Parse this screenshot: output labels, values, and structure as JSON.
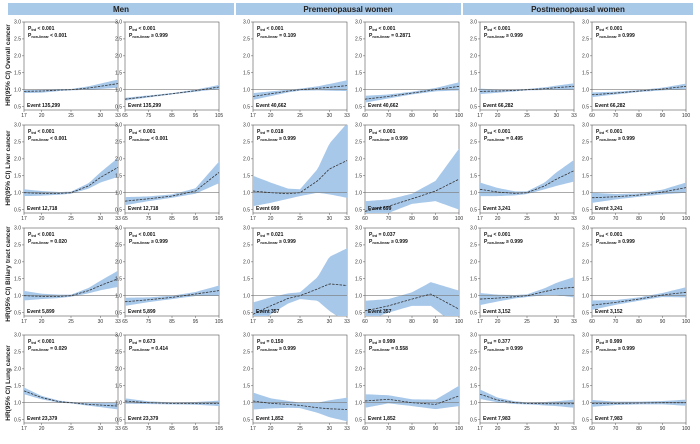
{
  "colors": {
    "header_bg": "#a9c9e8",
    "band": "#a8c8ea",
    "curve": "#333333",
    "reference_line": "#777777"
  },
  "columns": [
    "Men",
    "Premenopausal women",
    "Postmenopausal women"
  ],
  "row_labels": [
    "HR(95% CI) Overall cancer",
    "HR(95% CI) Liver cancer",
    "HR(95% CI) Biliary tract cancer",
    "HR(95% CI) Lung cancer"
  ],
  "chart_data": {
    "type": "line",
    "layout": "grid of 4 rows x 6 panels; spline hazard ratio curves with 95% CI bands and reference line at HR = 1.0",
    "x_axes": {
      "bmi": {
        "ticks": [
          "17",
          "20",
          "25",
          "30",
          "33"
        ],
        "range": [
          17,
          33
        ]
      },
      "waist": {
        "ticks": [
          "65",
          "75",
          "85",
          "95",
          "105"
        ],
        "range": [
          65,
          105
        ]
      },
      "waist_pre": {
        "ticks": [
          "60",
          "70",
          "80",
          "90",
          "100"
        ],
        "range": [
          60,
          100
        ]
      }
    },
    "y_ticks": [
      "0.5",
      "1.0",
      "1.5",
      "2.0",
      "2.5",
      "3.0"
    ],
    "ylim": [
      0.4,
      3.0
    ],
    "p_trend_label": "P",
    "p_trend_sub": "trd",
    "p_nonlinear_label": "P",
    "p_nonlinear_sub": "non-linear",
    "panels": [
      {
        "row": 0,
        "col": 0,
        "x": "bmi",
        "p_trend": "< 0.001",
        "p_nonlinear": "< 0.001",
        "event": "Event 135,299",
        "curve": [
          [
            17,
            0.95
          ],
          [
            20,
            0.96
          ],
          [
            23,
            0.99
          ],
          [
            25,
            1.0
          ],
          [
            28,
            1.05
          ],
          [
            30,
            1.1
          ],
          [
            33,
            1.18
          ]
        ],
        "band": [
          0.05,
          0.05,
          0.03,
          0.02,
          0.05,
          0.08,
          0.12
        ]
      },
      {
        "row": 0,
        "col": 1,
        "x": "waist",
        "p_trend": "< 0.001",
        "p_nonlinear": "≥ 0.999",
        "event": "Event 135,299",
        "curve": [
          [
            65,
            0.72
          ],
          [
            75,
            0.8
          ],
          [
            85,
            0.88
          ],
          [
            95,
            0.97
          ],
          [
            105,
            1.08
          ]
        ],
        "band": [
          0.04,
          0.03,
          0.02,
          0.03,
          0.06
        ]
      },
      {
        "row": 0,
        "col": 2,
        "x": "bmi",
        "p_trend": "< 0.001",
        "p_nonlinear": "= 0.109",
        "event": "Event 40,662",
        "curve": [
          [
            17,
            0.8
          ],
          [
            20,
            0.88
          ],
          [
            23,
            0.96
          ],
          [
            25,
            1.0
          ],
          [
            28,
            1.04
          ],
          [
            30,
            1.07
          ],
          [
            33,
            1.12
          ]
        ],
        "band": [
          0.1,
          0.07,
          0.04,
          0.03,
          0.06,
          0.1,
          0.16
        ]
      },
      {
        "row": 0,
        "col": 3,
        "x": "waist_pre",
        "p_trend": "< 0.001",
        "p_nonlinear": "= 0.2871",
        "event": "Event 40,662",
        "curve": [
          [
            60,
            0.72
          ],
          [
            70,
            0.8
          ],
          [
            80,
            0.9
          ],
          [
            90,
            1.0
          ],
          [
            100,
            1.1
          ]
        ],
        "band": [
          0.1,
          0.06,
          0.04,
          0.05,
          0.12
        ]
      },
      {
        "row": 0,
        "col": 4,
        "x": "bmi",
        "p_trend": "< 0.001",
        "p_nonlinear": "≥ 0.999",
        "event": "Event 66,282",
        "curve": [
          [
            17,
            0.95
          ],
          [
            20,
            0.96
          ],
          [
            23,
            0.98
          ],
          [
            25,
            1.0
          ],
          [
            28,
            1.03
          ],
          [
            30,
            1.06
          ],
          [
            33,
            1.1
          ]
        ],
        "band": [
          0.08,
          0.05,
          0.03,
          0.02,
          0.04,
          0.06,
          0.09
        ]
      },
      {
        "row": 0,
        "col": 5,
        "x": "waist_pre",
        "p_trend": "< 0.001",
        "p_nonlinear": "≥ 0.999",
        "event": "Event 66,282",
        "curve": [
          [
            60,
            0.85
          ],
          [
            70,
            0.9
          ],
          [
            80,
            0.96
          ],
          [
            90,
            1.02
          ],
          [
            100,
            1.1
          ]
        ],
        "band": [
          0.07,
          0.04,
          0.03,
          0.04,
          0.08
        ]
      },
      {
        "row": 1,
        "col": 0,
        "x": "bmi",
        "p_trend": "< 0.001",
        "p_nonlinear": "< 0.001",
        "event": "Event 12,718",
        "curve": [
          [
            17,
            1.0
          ],
          [
            20,
            0.98
          ],
          [
            23,
            0.98
          ],
          [
            25,
            1.0
          ],
          [
            28,
            1.2
          ],
          [
            30,
            1.45
          ],
          [
            33,
            1.75
          ]
        ],
        "band": [
          0.1,
          0.07,
          0.04,
          0.03,
          0.08,
          0.15,
          0.28
        ]
      },
      {
        "row": 1,
        "col": 1,
        "x": "waist",
        "p_trend": "< 0.001",
        "p_nonlinear": "< 0.001",
        "event": "Event 12,718",
        "curve": [
          [
            65,
            0.75
          ],
          [
            75,
            0.82
          ],
          [
            85,
            0.9
          ],
          [
            95,
            1.05
          ],
          [
            105,
            1.6
          ]
        ],
        "band": [
          0.12,
          0.07,
          0.05,
          0.08,
          0.32
        ]
      },
      {
        "row": 1,
        "col": 2,
        "x": "bmi",
        "p_trend": "= 0.018",
        "p_nonlinear": "≥ 0.999",
        "event": "Event 699",
        "curve": [
          [
            17,
            1.05
          ],
          [
            20,
            1.0
          ],
          [
            23,
            0.97
          ],
          [
            25,
            1.0
          ],
          [
            28,
            1.35
          ],
          [
            30,
            1.7
          ],
          [
            33,
            1.95
          ]
        ],
        "band": [
          0.45,
          0.3,
          0.15,
          0.1,
          0.35,
          0.75,
          1.1
        ]
      },
      {
        "row": 1,
        "col": 3,
        "x": "waist_pre",
        "p_trend": "< 0.001",
        "p_nonlinear": "≥ 0.999",
        "event": "Event 699",
        "curve": [
          [
            60,
            0.45
          ],
          [
            70,
            0.6
          ],
          [
            80,
            0.82
          ],
          [
            90,
            1.05
          ],
          [
            100,
            1.4
          ]
        ],
        "band": [
          0.3,
          0.2,
          0.15,
          0.3,
          0.9
        ]
      },
      {
        "row": 1,
        "col": 4,
        "x": "bmi",
        "p_trend": "< 0.001",
        "p_nonlinear": "= 0.495",
        "event": "Event 3,241",
        "curve": [
          [
            17,
            1.1
          ],
          [
            20,
            1.02
          ],
          [
            23,
            0.98
          ],
          [
            25,
            1.0
          ],
          [
            28,
            1.2
          ],
          [
            30,
            1.4
          ],
          [
            33,
            1.65
          ]
        ],
        "band": [
          0.2,
          0.12,
          0.06,
          0.04,
          0.1,
          0.2,
          0.32
        ]
      },
      {
        "row": 1,
        "col": 5,
        "x": "waist_pre",
        "p_trend": "< 0.001",
        "p_nonlinear": "≥ 0.999",
        "event": "Event 3,241",
        "curve": [
          [
            60,
            0.85
          ],
          [
            70,
            0.88
          ],
          [
            80,
            0.93
          ],
          [
            90,
            1.02
          ],
          [
            100,
            1.15
          ]
        ],
        "band": [
          0.15,
          0.08,
          0.05,
          0.07,
          0.15
        ]
      },
      {
        "row": 2,
        "col": 0,
        "x": "bmi",
        "p_trend": "< 0.001",
        "p_nonlinear": "= 0.020",
        "event": "Event 5,899",
        "curve": [
          [
            17,
            1.0
          ],
          [
            20,
            0.98
          ],
          [
            23,
            0.98
          ],
          [
            25,
            1.0
          ],
          [
            28,
            1.15
          ],
          [
            30,
            1.3
          ],
          [
            33,
            1.5
          ]
        ],
        "band": [
          0.14,
          0.08,
          0.05,
          0.03,
          0.08,
          0.14,
          0.24
        ]
      },
      {
        "row": 2,
        "col": 1,
        "x": "waist",
        "p_trend": "< 0.001",
        "p_nonlinear": "≥ 0.999",
        "event": "Event 5,899",
        "curve": [
          [
            65,
            0.82
          ],
          [
            75,
            0.88
          ],
          [
            85,
            0.95
          ],
          [
            95,
            1.05
          ],
          [
            105,
            1.15
          ]
        ],
        "band": [
          0.12,
          0.07,
          0.05,
          0.06,
          0.15
        ]
      },
      {
        "row": 2,
        "col": 2,
        "x": "bmi",
        "p_trend": "= 0.021",
        "p_nonlinear": "≥ 0.999",
        "event": "Event 357",
        "curve": [
          [
            17,
            0.45
          ],
          [
            20,
            0.7
          ],
          [
            23,
            0.92
          ],
          [
            25,
            1.0
          ],
          [
            28,
            1.2
          ],
          [
            30,
            1.35
          ],
          [
            33,
            1.3
          ]
        ],
        "band": [
          0.35,
          0.25,
          0.15,
          0.1,
          0.35,
          0.8,
          1.1
        ]
      },
      {
        "row": 2,
        "col": 3,
        "x": "waist_pre",
        "p_trend": "= 0.037",
        "p_nonlinear": "≥ 0.999",
        "event": "Event 357",
        "curve": [
          [
            60,
            0.55
          ],
          [
            70,
            0.7
          ],
          [
            80,
            0.9
          ],
          [
            88,
            1.05
          ],
          [
            100,
            0.6
          ]
        ],
        "band": [
          0.3,
          0.2,
          0.2,
          0.35,
          0.55
        ]
      },
      {
        "row": 2,
        "col": 4,
        "x": "bmi",
        "p_trend": "< 0.001",
        "p_nonlinear": "≥ 0.999",
        "event": "Event 3,152",
        "curve": [
          [
            17,
            0.9
          ],
          [
            20,
            0.93
          ],
          [
            23,
            0.97
          ],
          [
            25,
            1.0
          ],
          [
            28,
            1.12
          ],
          [
            30,
            1.2
          ],
          [
            33,
            1.25
          ]
        ],
        "band": [
          0.18,
          0.1,
          0.05,
          0.04,
          0.1,
          0.18,
          0.3
        ]
      },
      {
        "row": 2,
        "col": 5,
        "x": "waist_pre",
        "p_trend": "< 0.001",
        "p_nonlinear": "≥ 0.999",
        "event": "Event 3,152",
        "curve": [
          [
            60,
            0.72
          ],
          [
            70,
            0.8
          ],
          [
            80,
            0.9
          ],
          [
            90,
            1.02
          ],
          [
            100,
            1.1
          ]
        ],
        "band": [
          0.14,
          0.07,
          0.05,
          0.06,
          0.15
        ]
      },
      {
        "row": 3,
        "col": 0,
        "x": "bmi",
        "p_trend": "< 0.001",
        "p_nonlinear": "= 0.029",
        "event": "Event 23,379",
        "curve": [
          [
            17,
            1.35
          ],
          [
            20,
            1.15
          ],
          [
            23,
            1.03
          ],
          [
            25,
            1.0
          ],
          [
            28,
            0.95
          ],
          [
            30,
            0.93
          ],
          [
            33,
            0.9
          ]
        ],
        "band": [
          0.1,
          0.05,
          0.03,
          0.02,
          0.04,
          0.06,
          0.1
        ]
      },
      {
        "row": 3,
        "col": 1,
        "x": "waist",
        "p_trend": "= 0.673",
        "p_nonlinear": "= 0.414",
        "event": "Event 23,379",
        "curve": [
          [
            65,
            1.05
          ],
          [
            75,
            1.0
          ],
          [
            85,
            0.98
          ],
          [
            95,
            0.98
          ],
          [
            105,
            0.98
          ]
        ],
        "band": [
          0.08,
          0.04,
          0.03,
          0.04,
          0.08
        ]
      },
      {
        "row": 3,
        "col": 2,
        "x": "bmi",
        "p_trend": "= 0.150",
        "p_nonlinear": "≥ 0.999",
        "event": "Event 1,852",
        "curve": [
          [
            17,
            1.05
          ],
          [
            20,
            0.98
          ],
          [
            23,
            0.95
          ],
          [
            25,
            0.92
          ],
          [
            28,
            0.85
          ],
          [
            30,
            0.82
          ],
          [
            33,
            0.8
          ]
        ],
        "band": [
          0.25,
          0.15,
          0.1,
          0.08,
          0.15,
          0.25,
          0.35
        ]
      },
      {
        "row": 3,
        "col": 3,
        "x": "waist_pre",
        "p_trend": "≥ 0.999",
        "p_nonlinear": "= 0.558",
        "event": "Event 1,852",
        "curve": [
          [
            60,
            1.05
          ],
          [
            70,
            1.1
          ],
          [
            80,
            1.0
          ],
          [
            90,
            0.95
          ],
          [
            100,
            1.2
          ]
        ],
        "band": [
          0.2,
          0.12,
          0.1,
          0.14,
          0.3
        ]
      },
      {
        "row": 3,
        "col": 4,
        "x": "bmi",
        "p_trend": "= 0.377",
        "p_nonlinear": "≥ 0.999",
        "event": "Event 7,983",
        "curve": [
          [
            17,
            1.25
          ],
          [
            20,
            1.08
          ],
          [
            23,
            1.0
          ],
          [
            25,
            0.98
          ],
          [
            28,
            0.97
          ],
          [
            30,
            0.97
          ],
          [
            33,
            0.97
          ]
        ],
        "band": [
          0.14,
          0.07,
          0.04,
          0.03,
          0.05,
          0.07,
          0.12
        ]
      },
      {
        "row": 3,
        "col": 5,
        "x": "waist_pre",
        "p_trend": "≥ 0.999",
        "p_nonlinear": "≥ 0.999",
        "event": "Event 7,983",
        "curve": [
          [
            60,
            0.98
          ],
          [
            70,
            0.98
          ],
          [
            80,
            0.99
          ],
          [
            90,
            1.0
          ],
          [
            100,
            1.0
          ]
        ],
        "band": [
          0.1,
          0.05,
          0.04,
          0.05,
          0.09
        ]
      }
    ]
  }
}
